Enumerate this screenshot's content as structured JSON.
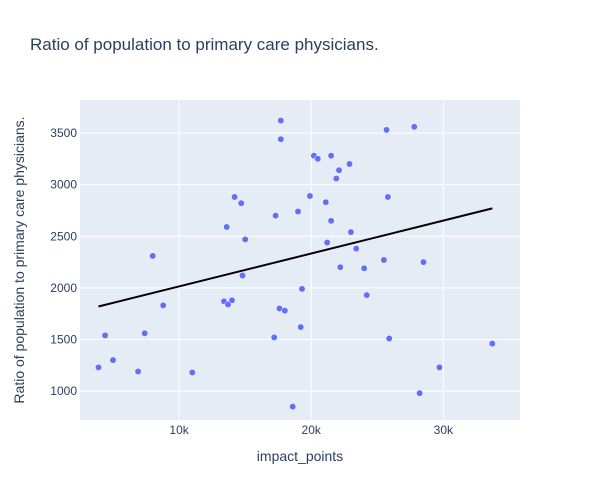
{
  "chart_data": {
    "type": "scatter",
    "title": "Ratio of population to primary care physicians.",
    "xlabel": "impact_points",
    "ylabel": "Ratio of population to primary care physicians.",
    "xlim": [
      2500,
      35800
    ],
    "ylim": [
      720,
      3820
    ],
    "x_ticks": [
      10000,
      20000,
      30000
    ],
    "x_tick_labels": [
      "10k",
      "20k",
      "30k"
    ],
    "y_ticks": [
      1000,
      1500,
      2000,
      2500,
      3000,
      3500
    ],
    "y_tick_labels": [
      "1000",
      "1500",
      "2000",
      "2500",
      "3000",
      "3500"
    ],
    "grid": true,
    "colors": {
      "point": "#636efa",
      "trendline": "#000000",
      "plot_bg": "#e5ecf6",
      "grid": "#ffffff"
    },
    "series": [
      {
        "mode": "markers",
        "x": [
          3900,
          4400,
          5000,
          6900,
          7400,
          8000,
          8800,
          11000,
          13400,
          13600,
          13700,
          14000,
          14200,
          14700,
          14800,
          15000,
          17200,
          17300,
          17600,
          17700,
          17700,
          18000,
          18600,
          19000,
          19200,
          19300,
          19900,
          20200,
          20500,
          21100,
          21200,
          21500,
          21500,
          21900,
          22100,
          22200,
          22900,
          23000,
          23400,
          24000,
          24200,
          25500,
          25700,
          25800,
          25900,
          27800,
          28200,
          28500,
          29700,
          33700
        ],
        "y": [
          1230,
          1540,
          1300,
          1190,
          1560,
          2310,
          1830,
          1180,
          1870,
          2590,
          1840,
          1880,
          2880,
          2820,
          2120,
          2470,
          1520,
          2700,
          1800,
          3620,
          3440,
          1780,
          850,
          2740,
          1620,
          1990,
          2890,
          3280,
          3250,
          2830,
          2440,
          3280,
          2650,
          3060,
          3140,
          2200,
          3200,
          2540,
          2380,
          2190,
          1930,
          2270,
          3530,
          2880,
          1510,
          3560,
          980,
          2250,
          1230,
          1460
        ]
      },
      {
        "mode": "lines",
        "x": [
          3900,
          33700
        ],
        "y": [
          1820,
          2770
        ]
      }
    ]
  }
}
